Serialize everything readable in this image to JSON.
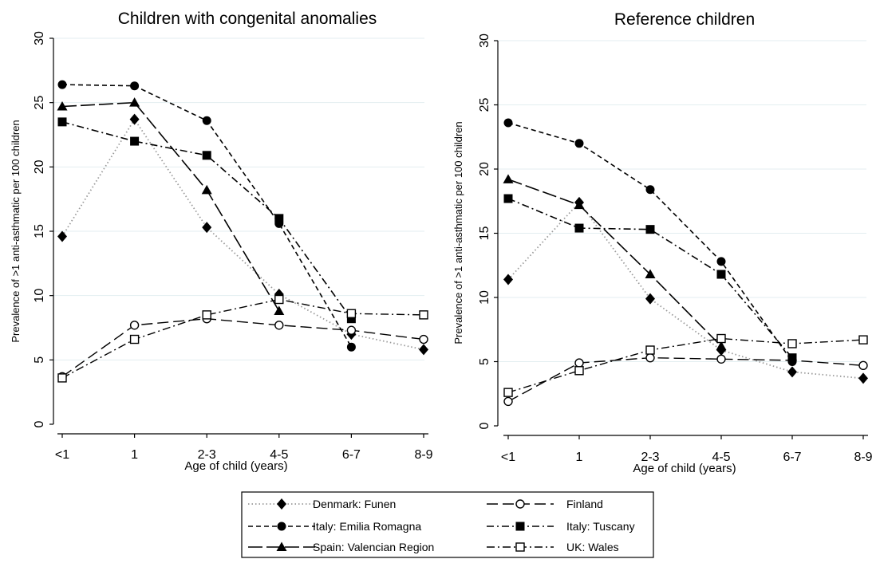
{
  "chart_data": [
    {
      "type": "line",
      "title": "Children with congenital anomalies",
      "xlabel": "Age of child (years)",
      "ylabel": "Prevalence of >1 anti-asthmatic per 100 children",
      "categories": [
        "<1",
        "1",
        "2-3",
        "4-5",
        "6-7",
        "8-9"
      ],
      "ylim": [
        0,
        30
      ],
      "yticks": [
        0,
        5,
        10,
        15,
        20,
        25,
        30
      ],
      "grid": true,
      "series": [
        {
          "name": "Denmark: Funen",
          "values": [
            14.6,
            23.7,
            15.3,
            10.1,
            7.0,
            5.8
          ]
        },
        {
          "name": "Finland",
          "values": [
            3.7,
            7.7,
            8.2,
            7.7,
            7.3,
            6.6
          ]
        },
        {
          "name": "Italy: Emilia Romagna",
          "values": [
            26.4,
            26.3,
            23.6,
            15.6,
            6.0,
            null
          ]
        },
        {
          "name": "Italy: Tuscany",
          "values": [
            23.5,
            22.0,
            20.9,
            16.0,
            8.2,
            null
          ]
        },
        {
          "name": "Spain: Valencian Region",
          "values": [
            24.7,
            25.0,
            18.2,
            8.8,
            null,
            null
          ]
        },
        {
          "name": "UK: Wales",
          "values": [
            3.6,
            6.6,
            8.5,
            9.7,
            8.6,
            8.5
          ]
        }
      ]
    },
    {
      "type": "line",
      "title": "Reference children",
      "xlabel": "Age of child (years)",
      "ylabel": "Prevalence of >1 anti-asthmatic per 100 children",
      "categories": [
        "<1",
        "1",
        "2-3",
        "4-5",
        "6-7",
        "8-9"
      ],
      "ylim": [
        0,
        30
      ],
      "yticks": [
        0,
        5,
        10,
        15,
        20,
        25,
        30
      ],
      "grid": true,
      "series": [
        {
          "name": "Denmark: Funen",
          "values": [
            11.4,
            17.4,
            9.9,
            5.9,
            4.2,
            3.7
          ]
        },
        {
          "name": "Finland",
          "values": [
            1.9,
            4.9,
            5.3,
            5.2,
            5.1,
            4.7
          ]
        },
        {
          "name": "Italy: Emilia Romagna",
          "values": [
            23.6,
            22.0,
            18.4,
            12.8,
            5.0,
            null
          ]
        },
        {
          "name": "Italy: Tuscany",
          "values": [
            17.7,
            15.4,
            15.3,
            11.8,
            5.3,
            null
          ]
        },
        {
          "name": "Spain: Valencian Region",
          "values": [
            19.2,
            17.2,
            11.8,
            6.2,
            null,
            null
          ]
        },
        {
          "name": "UK: Wales",
          "values": [
            2.6,
            4.3,
            5.9,
            6.8,
            6.4,
            6.7
          ]
        }
      ]
    }
  ],
  "legend": {
    "placement": "bottom",
    "items": [
      {
        "label": "Denmark: Funen",
        "marker": "diamond",
        "dash": "dotted",
        "color": "#9a9a9a"
      },
      {
        "label": "Finland",
        "marker": "circle-open",
        "dash": "long-dash",
        "color": "#000000"
      },
      {
        "label": "Italy: Emilia Romagna",
        "marker": "circle",
        "dash": "dashed",
        "color": "#000000"
      },
      {
        "label": "Italy: Tuscany",
        "marker": "square",
        "dash": "dash-dot",
        "color": "#000000"
      },
      {
        "label": "Spain: Valencian Region",
        "marker": "triangle",
        "dash": "long-dash",
        "color": "#000000"
      },
      {
        "label": "UK: Wales",
        "marker": "square-open",
        "dash": "dash-dot",
        "color": "#000000"
      }
    ]
  },
  "colors": {
    "grid": "#e3eef0",
    "axis": "#000000",
    "denmark_line": "#9a9a9a"
  }
}
